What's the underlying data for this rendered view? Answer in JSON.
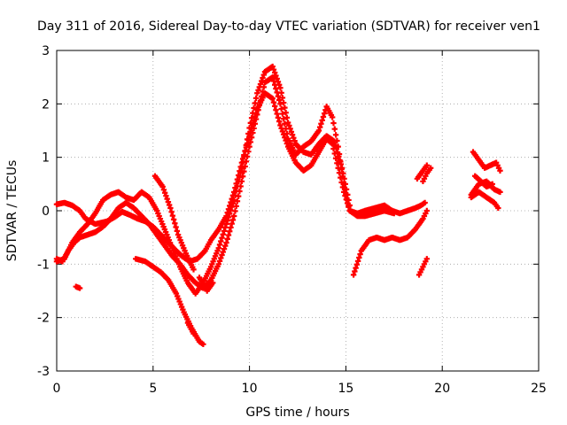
{
  "chart_data": {
    "type": "scatter",
    "title": "Day 311 of 2016, Sidereal Day-to-day VTEC variation (SDTVAR) for receiver ven1",
    "xlabel": "GPS time / hours",
    "ylabel": "SDTVAR / TECUs",
    "xlim": [
      0,
      25
    ],
    "ylim": [
      -3,
      3
    ],
    "x_ticks": [
      "0",
      "5",
      "10",
      "15",
      "20",
      "25"
    ],
    "y_ticks": [
      "-3",
      "-2",
      "-1",
      "0",
      "1",
      "2",
      "3"
    ],
    "grid": true,
    "marker": "plus",
    "color": "#ff0000",
    "series": [
      {
        "segments": [
          [
            [
              0.0,
              0.12
            ],
            [
              0.4,
              0.15
            ],
            [
              0.8,
              0.1
            ],
            [
              1.2,
              0.0
            ],
            [
              1.5,
              -0.15
            ],
            [
              2.0,
              -0.25
            ],
            [
              2.6,
              -0.2
            ],
            [
              3.0,
              -0.12
            ],
            [
              3.4,
              -0.02
            ],
            [
              3.8,
              -0.08
            ],
            [
              4.2,
              -0.15
            ],
            [
              4.6,
              -0.2
            ],
            [
              5.0,
              -0.3
            ],
            [
              5.4,
              -0.45
            ],
            [
              5.8,
              -0.6
            ],
            [
              6.2,
              -0.75
            ],
            [
              6.5,
              -0.85
            ],
            [
              6.9,
              -0.95
            ],
            [
              7.3,
              -0.9
            ],
            [
              7.7,
              -0.75
            ],
            [
              8.0,
              -0.55
            ],
            [
              8.4,
              -0.35
            ],
            [
              8.8,
              -0.1
            ],
            [
              9.2,
              0.35
            ],
            [
              9.6,
              0.9
            ],
            [
              10.0,
              1.4
            ],
            [
              10.4,
              1.9
            ],
            [
              10.8,
              2.2
            ],
            [
              11.2,
              2.1
            ],
            [
              11.6,
              1.6
            ],
            [
              12.0,
              1.2
            ],
            [
              12.4,
              0.9
            ],
            [
              12.8,
              0.75
            ],
            [
              13.2,
              0.85
            ],
            [
              13.6,
              1.1
            ],
            [
              14.0,
              1.35
            ],
            [
              14.3,
              1.25
            ],
            [
              14.6,
              0.8
            ],
            [
              14.9,
              0.35
            ],
            [
              15.2,
              0.0
            ],
            [
              15.6,
              -0.05
            ],
            [
              16.0,
              0.0
            ],
            [
              16.5,
              0.05
            ],
            [
              17.0,
              0.1
            ],
            [
              17.4,
              0.0
            ],
            [
              17.8,
              -0.05
            ],
            [
              18.2,
              0.0
            ],
            [
              18.6,
              0.05
            ],
            [
              18.9,
              0.1
            ],
            [
              19.1,
              0.15
            ]
          ]
        ]
      },
      {
        "segments": [
          [
            [
              0.0,
              -0.9
            ],
            [
              0.3,
              -0.95
            ],
            [
              0.6,
              -0.75
            ],
            [
              0.9,
              -0.6
            ],
            [
              1.2,
              -0.5
            ],
            [
              1.6,
              -0.45
            ],
            [
              2.0,
              -0.4
            ],
            [
              2.4,
              -0.3
            ],
            [
              2.8,
              -0.15
            ],
            [
              3.2,
              0.05
            ],
            [
              3.6,
              0.15
            ],
            [
              4.0,
              0.05
            ],
            [
              4.4,
              -0.1
            ],
            [
              4.8,
              -0.25
            ],
            [
              5.2,
              -0.45
            ],
            [
              5.6,
              -0.65
            ],
            [
              6.0,
              -0.85
            ],
            [
              6.4,
              -1.0
            ],
            [
              6.8,
              -1.2
            ],
            [
              7.2,
              -1.35
            ],
            [
              7.6,
              -1.45
            ],
            [
              8.0,
              -1.3
            ],
            [
              8.4,
              -1.0
            ],
            [
              8.8,
              -0.6
            ],
            [
              9.2,
              -0.1
            ],
            [
              9.6,
              0.55
            ],
            [
              10.0,
              1.2
            ],
            [
              10.4,
              1.8
            ],
            [
              10.8,
              2.4
            ],
            [
              11.2,
              2.5
            ],
            [
              11.6,
              2.0
            ],
            [
              12.0,
              1.35
            ],
            [
              12.4,
              1.05
            ],
            [
              12.8,
              1.2
            ],
            [
              13.2,
              1.3
            ],
            [
              13.6,
              1.5
            ],
            [
              14.0,
              1.95
            ],
            [
              14.3,
              1.75
            ],
            [
              14.6,
              1.2
            ],
            [
              14.9,
              0.5
            ],
            [
              15.2,
              0.0
            ],
            [
              15.6,
              -0.1
            ],
            [
              16.0,
              -0.1
            ],
            [
              16.5,
              -0.05
            ],
            [
              17.0,
              0.0
            ],
            [
              17.5,
              -0.05
            ]
          ],
          [
            [
              7.4,
              -1.25
            ],
            [
              7.8,
              -1.5
            ],
            [
              8.1,
              -1.35
            ]
          ],
          [
            [
              19.0,
              0.55
            ],
            [
              19.2,
              0.7
            ],
            [
              19.4,
              0.8
            ]
          ]
        ]
      },
      {
        "segments": [
          [
            [
              0.0,
              -0.95
            ],
            [
              0.4,
              -0.9
            ],
            [
              0.8,
              -0.6
            ],
            [
              1.2,
              -0.4
            ],
            [
              1.6,
              -0.25
            ],
            [
              2.0,
              -0.05
            ],
            [
              2.4,
              0.2
            ],
            [
              2.8,
              0.3
            ],
            [
              3.2,
              0.35
            ],
            [
              3.6,
              0.25
            ],
            [
              4.0,
              0.2
            ],
            [
              4.4,
              0.35
            ],
            [
              4.8,
              0.25
            ],
            [
              5.2,
              0.0
            ],
            [
              5.6,
              -0.35
            ],
            [
              6.0,
              -0.7
            ],
            [
              6.4,
              -1.05
            ],
            [
              6.8,
              -1.35
            ],
            [
              7.2,
              -1.55
            ],
            [
              7.6,
              -1.35
            ],
            [
              8.0,
              -1.05
            ],
            [
              8.4,
              -0.7
            ],
            [
              8.8,
              -0.25
            ],
            [
              9.2,
              0.2
            ],
            [
              9.6,
              0.8
            ],
            [
              10.0,
              1.55
            ],
            [
              10.4,
              2.2
            ],
            [
              10.8,
              2.6
            ],
            [
              11.2,
              2.7
            ],
            [
              11.6,
              2.3
            ],
            [
              12.0,
              1.65
            ],
            [
              12.4,
              1.25
            ],
            [
              12.8,
              1.1
            ],
            [
              13.2,
              1.05
            ],
            [
              13.6,
              1.25
            ],
            [
              14.0,
              1.4
            ],
            [
              14.4,
              1.3
            ],
            [
              14.8,
              0.8
            ],
            [
              15.2,
              0.1
            ]
          ],
          [
            [
              1.0,
              -1.42
            ],
            [
              1.2,
              -1.45
            ]
          ],
          [
            [
              5.1,
              0.65
            ],
            [
              5.5,
              0.45
            ],
            [
              5.9,
              0.05
            ],
            [
              6.3,
              -0.45
            ],
            [
              6.7,
              -0.8
            ],
            [
              7.1,
              -1.1
            ]
          ]
        ]
      },
      {
        "segments": [
          [
            [
              4.1,
              -0.9
            ],
            [
              4.6,
              -0.95
            ],
            [
              5.0,
              -1.05
            ],
            [
              5.4,
              -1.15
            ],
            [
              5.8,
              -1.3
            ],
            [
              6.2,
              -1.55
            ],
            [
              6.6,
              -1.9
            ],
            [
              7.0,
              -2.2
            ],
            [
              7.4,
              -2.45
            ],
            [
              7.6,
              -2.5
            ]
          ],
          [
            [
              6.8,
              -2.1
            ],
            [
              7.1,
              -2.3
            ]
          ],
          [
            [
              15.4,
              -1.2
            ],
            [
              15.8,
              -0.75
            ],
            [
              16.2,
              -0.55
            ],
            [
              16.6,
              -0.5
            ],
            [
              17.0,
              -0.55
            ],
            [
              17.4,
              -0.5
            ],
            [
              17.8,
              -0.55
            ],
            [
              18.2,
              -0.5
            ],
            [
              18.6,
              -0.35
            ],
            [
              19.0,
              -0.15
            ],
            [
              19.2,
              0.0
            ]
          ],
          [
            [
              18.7,
              0.6
            ],
            [
              19.0,
              0.75
            ],
            [
              19.2,
              0.85
            ]
          ],
          [
            [
              18.8,
              -1.2
            ],
            [
              19.0,
              -1.05
            ],
            [
              19.2,
              -0.9
            ]
          ],
          [
            [
              21.5,
              0.3
            ],
            [
              21.9,
              0.5
            ],
            [
              22.3,
              0.55
            ],
            [
              22.7,
              0.4
            ],
            [
              23.0,
              0.35
            ]
          ],
          [
            [
              21.6,
              1.1
            ],
            [
              21.9,
              0.95
            ],
            [
              22.2,
              0.8
            ],
            [
              22.5,
              0.85
            ],
            [
              22.8,
              0.9
            ],
            [
              23.0,
              0.75
            ]
          ],
          [
            [
              21.5,
              0.25
            ],
            [
              21.9,
              0.35
            ],
            [
              22.3,
              0.25
            ],
            [
              22.7,
              0.15
            ],
            [
              22.9,
              0.05
            ]
          ],
          [
            [
              21.7,
              0.65
            ],
            [
              22.0,
              0.55
            ],
            [
              22.3,
              0.45
            ],
            [
              22.6,
              0.5
            ]
          ]
        ]
      }
    ]
  }
}
